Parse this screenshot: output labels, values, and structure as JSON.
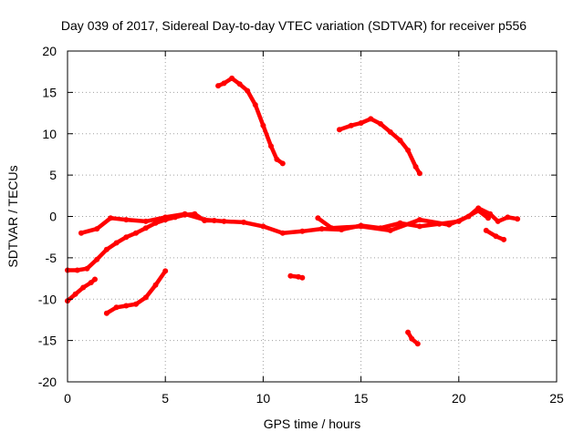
{
  "chart_data": {
    "type": "scatter",
    "title": "Day 039 of 2017, Sidereal Day-to-day VTEC variation (SDTVAR) for receiver p556",
    "xlabel": "GPS time / hours",
    "ylabel": "SDTVAR / TECUs",
    "xlim": [
      0,
      25
    ],
    "ylim": [
      -20,
      20
    ],
    "xticks": [
      0,
      5,
      10,
      15,
      20,
      25
    ],
    "yticks": [
      -20,
      -15,
      -10,
      -5,
      0,
      5,
      10,
      15,
      20
    ],
    "grid": true,
    "series_color": "#ff0000",
    "series": [
      {
        "name": "arc-low-rise-left",
        "points": [
          [
            0,
            -10.2
          ],
          [
            0.4,
            -9.4
          ],
          [
            0.8,
            -8.6
          ],
          [
            1.2,
            -8.0
          ],
          [
            1.4,
            -7.6
          ]
        ]
      },
      {
        "name": "arc-rise-to-zero",
        "points": [
          [
            0,
            -6.5
          ],
          [
            0.5,
            -6.5
          ],
          [
            1.0,
            -6.3
          ],
          [
            1.5,
            -5.2
          ],
          [
            2.0,
            -4.0
          ],
          [
            2.5,
            -3.2
          ],
          [
            3.0,
            -2.5
          ],
          [
            3.5,
            -2.0
          ],
          [
            4.0,
            -1.4
          ],
          [
            4.5,
            -0.8
          ],
          [
            5.0,
            -0.4
          ],
          [
            5.5,
            -0.1
          ],
          [
            6.0,
            0.2
          ],
          [
            6.5,
            0.3
          ],
          [
            7.0,
            -0.5
          ],
          [
            7.5,
            -0.5
          ]
        ]
      },
      {
        "name": "arc-long-near-zero",
        "points": [
          [
            0.7,
            -2.0
          ],
          [
            1.5,
            -1.5
          ],
          [
            2.2,
            -0.2
          ],
          [
            3.0,
            -0.4
          ],
          [
            4.0,
            -0.6
          ],
          [
            5.0,
            -0.1
          ],
          [
            6.0,
            0.3
          ],
          [
            7.0,
            -0.4
          ],
          [
            8.0,
            -0.6
          ],
          [
            9.0,
            -0.7
          ],
          [
            10.0,
            -1.2
          ],
          [
            11.0,
            -2.0
          ],
          [
            12.0,
            -1.8
          ],
          [
            13.0,
            -1.5
          ],
          [
            14.0,
            -1.6
          ],
          [
            15.0,
            -1.1
          ],
          [
            16.0,
            -1.4
          ],
          [
            17.0,
            -0.8
          ],
          [
            18.0,
            -1.2
          ],
          [
            19.0,
            -0.9
          ],
          [
            20.0,
            -0.6
          ],
          [
            21.0,
            0.7
          ],
          [
            21.5,
            -0.2
          ]
        ]
      },
      {
        "name": "arc-near-zero-right",
        "points": [
          [
            12.8,
            -0.2
          ],
          [
            13.5,
            -1.4
          ],
          [
            15.0,
            -1.2
          ],
          [
            16.5,
            -1.7
          ],
          [
            18.0,
            -0.4
          ],
          [
            19.5,
            -1.0
          ],
          [
            20.5,
            0.0
          ],
          [
            21.0,
            1.0
          ],
          [
            21.6,
            0.3
          ],
          [
            22.0,
            -0.6
          ],
          [
            22.5,
            -0.1
          ],
          [
            23.0,
            -0.3
          ]
        ]
      },
      {
        "name": "arc-peak-eight-hours",
        "points": [
          [
            7.7,
            15.8
          ],
          [
            8.0,
            16.1
          ],
          [
            8.4,
            16.7
          ],
          [
            8.8,
            16.0
          ],
          [
            9.2,
            15.2
          ],
          [
            9.6,
            13.5
          ],
          [
            10.0,
            11.0
          ],
          [
            10.4,
            8.5
          ],
          [
            10.7,
            6.9
          ],
          [
            11.0,
            6.4
          ]
        ]
      },
      {
        "name": "arc-peak-fifteen-hours",
        "points": [
          [
            13.9,
            10.5
          ],
          [
            14.5,
            11.0
          ],
          [
            15.0,
            11.3
          ],
          [
            15.5,
            11.8
          ],
          [
            16.0,
            11.2
          ],
          [
            16.5,
            10.2
          ],
          [
            17.0,
            9.2
          ],
          [
            17.4,
            8.0
          ],
          [
            17.8,
            6.0
          ],
          [
            18.0,
            5.2
          ]
        ]
      },
      {
        "name": "arc-low-rise-mid",
        "points": [
          [
            2.0,
            -11.7
          ],
          [
            2.5,
            -11.0
          ],
          [
            3.0,
            -10.8
          ],
          [
            3.5,
            -10.6
          ],
          [
            4.0,
            -9.8
          ],
          [
            4.5,
            -8.3
          ],
          [
            5.0,
            -6.6
          ]
        ]
      },
      {
        "name": "arc-drop-right",
        "points": [
          [
            21.4,
            -1.7
          ],
          [
            21.9,
            -2.4
          ],
          [
            22.3,
            -2.8
          ]
        ]
      },
      {
        "name": "arc-isolated-twelve-hours",
        "points": [
          [
            11.4,
            -7.2
          ],
          [
            11.8,
            -7.3
          ],
          [
            12.0,
            -7.4
          ]
        ]
      },
      {
        "name": "arc-isolated-seventeen-hours",
        "points": [
          [
            17.4,
            -14.0
          ],
          [
            17.6,
            -14.8
          ],
          [
            17.9,
            -15.4
          ]
        ]
      }
    ]
  }
}
